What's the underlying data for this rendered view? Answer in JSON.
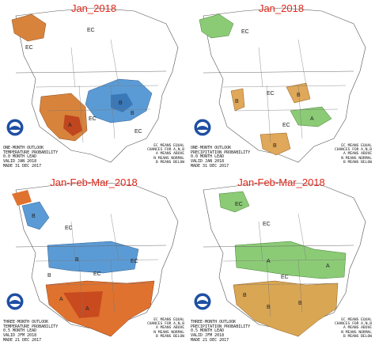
{
  "panels": [
    {
      "id": "temp-month",
      "title": "Jan_2018",
      "caption": [
        "ONE-MONTH OUTLOOK",
        "TEMPERATURE PROBABILITY",
        "0.0 MONTH LEAD",
        "VALID JAN 2018",
        "MADE 31 DEC 2017"
      ],
      "legend": [
        "EC MEANS EQUAL",
        "CHANCES FOR A,N,B",
        "A MEANS ABOVE",
        "N MEANS NORMAL",
        "B MEANS BELOW"
      ],
      "labels": [
        "EC",
        "EC",
        "EC",
        "EC",
        "A",
        "B",
        "B"
      ],
      "colors": {
        "above": "#d8833c",
        "below": "#5b9bd5"
      }
    },
    {
      "id": "precip-month",
      "title": "Jan_2018",
      "caption": [
        "ONE-MONTH OUTLOOK",
        "PRECIPITATION PROBABILITY",
        "0.0 MONTH LEAD",
        "VALID JAN 2018",
        "MADE 31 DEC 2017"
      ],
      "legend": [
        "EC MEANS EQUAL",
        "CHANCES FOR A,N,B",
        "A MEANS ABOVE",
        "N MEANS NORMAL",
        "B MEANS BELOW"
      ],
      "labels": [
        "EC",
        "EC",
        "EC",
        "A",
        "B",
        "B",
        "B"
      ],
      "colors": {
        "above": "#8ccb76",
        "below": "#e0a85a"
      }
    },
    {
      "id": "temp-season",
      "title": "Jan-Feb-Mar_2018",
      "caption": [
        "THREE-MONTH OUTLOOK",
        "TEMPERATURE PROBABILITY",
        "0.5 MONTH LEAD",
        "VALID JFM 2018",
        "MADE 21 DEC 2017"
      ],
      "legend": [
        "EC MEANS EQUAL",
        "CHANCES FOR A,N,B",
        "A MEANS ABOVE",
        "N MEANS NORMAL",
        "B MEANS BELOW"
      ],
      "labels": [
        "EC",
        "EC",
        "EC",
        "B",
        "B",
        "A",
        "A",
        "B"
      ],
      "colors": {
        "above": "#e0722f",
        "below": "#5b9bd5"
      }
    },
    {
      "id": "precip-season",
      "title": "Jan-Feb-Mar_2018",
      "caption": [
        "THREE-MONTH OUTLOOK",
        "PRECIPITATION PROBABILITY",
        "0.5 MONTH LEAD",
        "VALID JFM 2018",
        "MADE 21 DEC 2017"
      ],
      "legend": [
        "EC MEANS EQUAL",
        "CHANCES FOR A,N,B",
        "A MEANS ABOVE",
        "N MEANS NORMAL",
        "B MEANS BELOW"
      ],
      "labels": [
        "EC",
        "EC",
        "EC",
        "A",
        "A",
        "B",
        "B",
        "B"
      ],
      "colors": {
        "above": "#8ccb76",
        "below": "#d9a654"
      }
    }
  ]
}
